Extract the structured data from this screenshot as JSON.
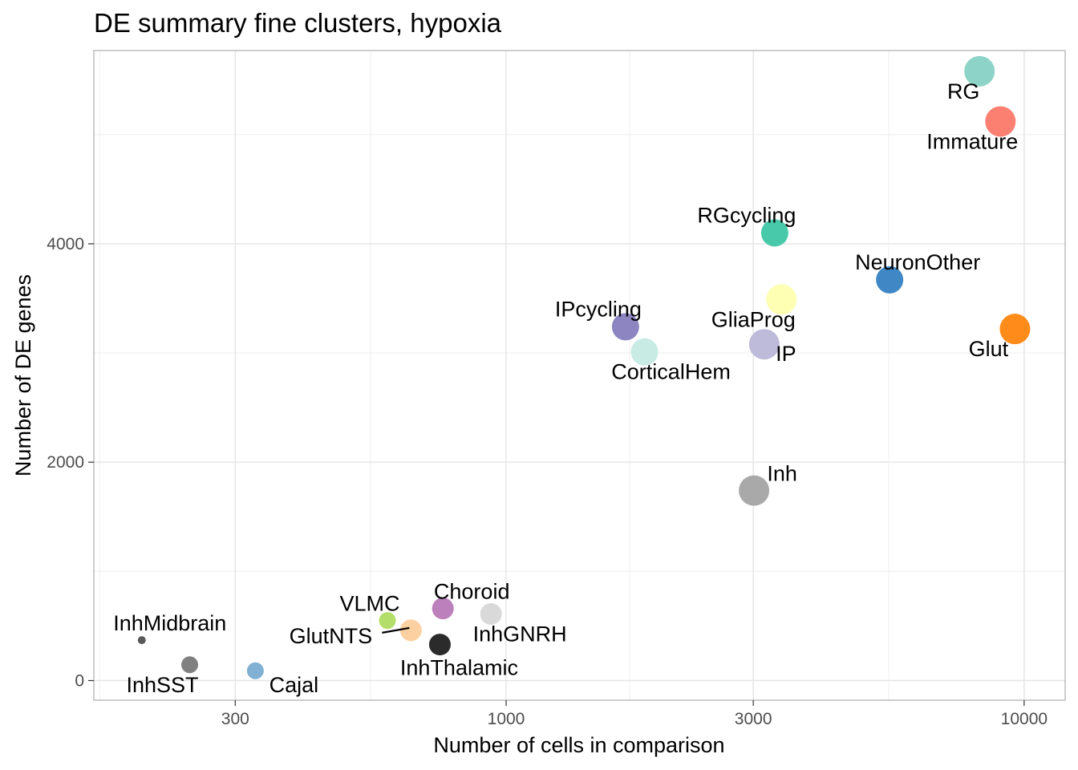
{
  "chart_data": {
    "type": "scatter",
    "title": "DE summary fine clusters, hypoxia",
    "xlabel": "Number of cells in comparison",
    "ylabel": "Number of DE genes",
    "x_scale": "log10",
    "xlim": [
      160,
      12000
    ],
    "ylim": [
      -180,
      5770
    ],
    "x_ticks": [
      300,
      1000,
      3000,
      10000
    ],
    "x_tick_labels": [
      "300",
      "1000",
      "3000",
      "10000"
    ],
    "y_ticks": [
      0,
      2000,
      4000
    ],
    "y_tick_labels": [
      "0",
      "2000",
      "4000"
    ],
    "grid": true,
    "legend": "none",
    "points": [
      {
        "label": "RG",
        "x": 8200,
        "y": 5580,
        "color": "#8dd3c7",
        "size": "large"
      },
      {
        "label": "Immature",
        "x": 9000,
        "y": 5120,
        "color": "#fb8072",
        "size": "large"
      },
      {
        "label": "RGcycling",
        "x": 3300,
        "y": 4100,
        "color": "#48c9a9",
        "size": "medium"
      },
      {
        "label": "NeuronOther",
        "x": 5500,
        "y": 3670,
        "color": "#3f88c5",
        "size": "medium"
      },
      {
        "label": "GliaProg",
        "x": 3400,
        "y": 3490,
        "color": "#ffffb3",
        "size": "large"
      },
      {
        "label": "Glut",
        "x": 9600,
        "y": 3220,
        "color": "#ff8c1a",
        "size": "large"
      },
      {
        "label": "IPcycling",
        "x": 1700,
        "y": 3240,
        "color": "#8c85c2",
        "size": "medium"
      },
      {
        "label": "IP",
        "x": 3150,
        "y": 3080,
        "color": "#bebada",
        "size": "large"
      },
      {
        "label": "CorticalHem",
        "x": 1850,
        "y": 3010,
        "color": "#c8ebe3",
        "size": "medium"
      },
      {
        "label": "Inh",
        "x": 3010,
        "y": 1740,
        "color": "#a9a9a9",
        "size": "large"
      },
      {
        "label": "Choroid",
        "x": 755,
        "y": 660,
        "color": "#bc80bd",
        "size": "small"
      },
      {
        "label": "InhGNRH",
        "x": 935,
        "y": 610,
        "color": "#d9d9d9",
        "size": "small"
      },
      {
        "label": "VLMC",
        "x": 590,
        "y": 550,
        "color": "#b3de69",
        "size": "xsmall"
      },
      {
        "label": "GlutNTS",
        "x": 655,
        "y": 460,
        "color": "#fdd0a2",
        "size": "small"
      },
      {
        "label": "InhThalamic",
        "x": 745,
        "y": 330,
        "color": "#2b2b2b",
        "size": "small"
      },
      {
        "label": "InhMidbrain",
        "x": 198,
        "y": 370,
        "color": "#595959",
        "size": "tiny"
      },
      {
        "label": "InhSST",
        "x": 245,
        "y": 145,
        "color": "#808080",
        "size": "xsmall"
      },
      {
        "label": "Cajal",
        "x": 328,
        "y": 90,
        "color": "#80b1d3",
        "size": "xsmall"
      }
    ]
  }
}
